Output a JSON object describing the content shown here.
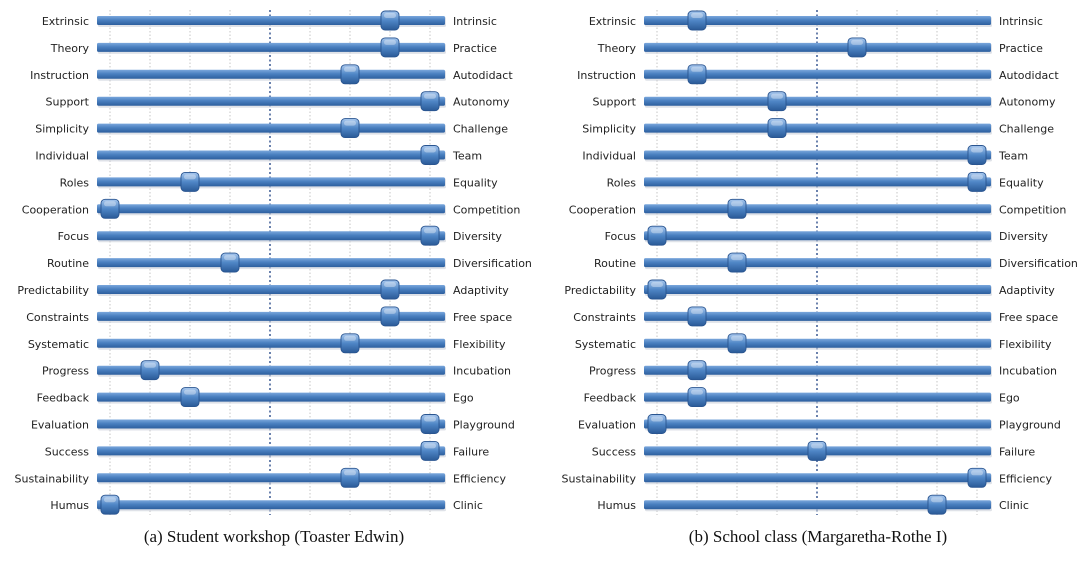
{
  "chart_data": [
    {
      "type": "scatter",
      "caption": "(a) Student workshop (Toaster Edwin)",
      "left_labels": [
        "Extrinsic",
        "Theory",
        "Instruction",
        "Support",
        "Simplicity",
        "Individual",
        "Roles",
        "Cooperation",
        "Focus",
        "Routine",
        "Predictability",
        "Constraints",
        "Systematic",
        "Progress",
        "Feedback",
        "Evaluation",
        "Success",
        "Sustainability",
        "Humus"
      ],
      "right_labels": [
        "Intrinsic",
        "Practice",
        "Autodidact",
        "Autonomy",
        "Challenge",
        "Team",
        "Equality",
        "Competition",
        "Diversity",
        "Diversification",
        "Adaptivity",
        "Free space",
        "Flexibility",
        "Incubation",
        "Ego",
        "Playground",
        "Failure",
        "Efficiency",
        "Clinic"
      ],
      "values": [
        7,
        7,
        6,
        8,
        6,
        8,
        2,
        0,
        8,
        3,
        7,
        7,
        6,
        1,
        2,
        8,
        8,
        6,
        0
      ],
      "xlim": [
        0,
        8
      ]
    },
    {
      "type": "scatter",
      "caption": "(b) School class (Margaretha-Rothe I)",
      "left_labels": [
        "Extrinsic",
        "Theory",
        "Instruction",
        "Support",
        "Simplicity",
        "Individual",
        "Roles",
        "Cooperation",
        "Focus",
        "Routine",
        "Predictability",
        "Constraints",
        "Systematic",
        "Progress",
        "Feedback",
        "Evaluation",
        "Success",
        "Sustainability",
        "Humus"
      ],
      "right_labels": [
        "Intrinsic",
        "Practice",
        "Autodidact",
        "Autonomy",
        "Challenge",
        "Team",
        "Equality",
        "Competition",
        "Diversity",
        "Diversification",
        "Adaptivity",
        "Free space",
        "Flexibility",
        "Incubation",
        "Ego",
        "Playground",
        "Failure",
        "Efficiency",
        "Clinic"
      ],
      "values": [
        1,
        5,
        1,
        3,
        3,
        8,
        8,
        2,
        0,
        2,
        0,
        1,
        2,
        1,
        1,
        0,
        4,
        8,
        7
      ],
      "xlim": [
        0,
        8
      ]
    }
  ],
  "colors": {
    "bar": "#4a80c0",
    "bar_dark": "#2d5f9e",
    "knob": "#4f86c6",
    "gridline": "#b8b8b8",
    "centerline": "#2c4c8a"
  }
}
